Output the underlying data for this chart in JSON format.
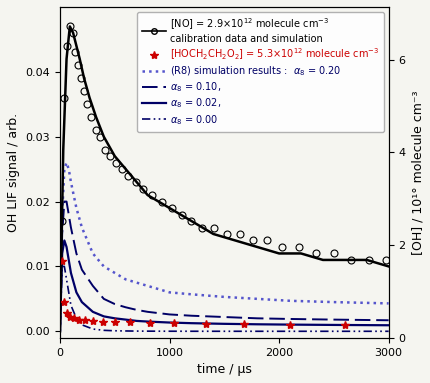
{
  "xlabel": "time / μs",
  "ylabel_left": "OH LIF signal / arb.",
  "ylabel_right": "[OH] / 10¹° molecule cm⁻³",
  "xlim": [
    0,
    3000
  ],
  "ylim_left": [
    -0.001,
    0.05
  ],
  "ylim_right": [
    0,
    7.14
  ],
  "background_color": "#f5f5f0",
  "no_data_x": [
    15,
    40,
    65,
    90,
    115,
    140,
    165,
    190,
    215,
    250,
    285,
    325,
    365,
    410,
    460,
    510,
    565,
    625,
    690,
    760,
    840,
    930,
    1020,
    1110,
    1200,
    1300,
    1410,
    1525,
    1640,
    1760,
    1890,
    2030,
    2180,
    2340,
    2500,
    2660,
    2820,
    2980
  ],
  "no_data_y": [
    0.017,
    0.036,
    0.044,
    0.047,
    0.046,
    0.043,
    0.041,
    0.039,
    0.037,
    0.035,
    0.033,
    0.031,
    0.03,
    0.028,
    0.027,
    0.026,
    0.025,
    0.024,
    0.023,
    0.022,
    0.021,
    0.02,
    0.019,
    0.018,
    0.017,
    0.016,
    0.016,
    0.015,
    0.015,
    0.014,
    0.014,
    0.013,
    0.013,
    0.012,
    0.012,
    0.011,
    0.011,
    0.011
  ],
  "no_sim_x": [
    0,
    30,
    60,
    90,
    120,
    150,
    180,
    220,
    270,
    330,
    400,
    500,
    600,
    700,
    800,
    900,
    1000,
    1100,
    1200,
    1400,
    1600,
    1800,
    2000,
    2200,
    2400,
    2600,
    2800,
    3000
  ],
  "no_sim_y": [
    0.0,
    0.028,
    0.042,
    0.047,
    0.046,
    0.044,
    0.042,
    0.039,
    0.036,
    0.033,
    0.03,
    0.027,
    0.025,
    0.023,
    0.021,
    0.02,
    0.019,
    0.018,
    0.017,
    0.015,
    0.014,
    0.013,
    0.012,
    0.012,
    0.011,
    0.011,
    0.011,
    0.01
  ],
  "hoch_data_x": [
    15,
    40,
    65,
    95,
    130,
    175,
    230,
    300,
    390,
    500,
    640,
    820,
    1040,
    1330,
    1680,
    2100,
    2600
  ],
  "hoch_data_y": [
    0.0108,
    0.0045,
    0.0028,
    0.0022,
    0.002,
    0.0018,
    0.0017,
    0.0016,
    0.0015,
    0.0015,
    0.0014,
    0.0013,
    0.0013,
    0.0012,
    0.0011,
    0.001,
    0.0009
  ],
  "alpha020_x": [
    0,
    20,
    40,
    60,
    80,
    100,
    150,
    200,
    300,
    400,
    500,
    600,
    700,
    800,
    1000,
    1200,
    1500,
    1800,
    2100,
    2500,
    3000
  ],
  "alpha020_y": [
    0.0,
    0.018,
    0.025,
    0.026,
    0.025,
    0.023,
    0.019,
    0.016,
    0.012,
    0.01,
    0.009,
    0.008,
    0.0075,
    0.007,
    0.006,
    0.0057,
    0.0053,
    0.005,
    0.0047,
    0.0045,
    0.0043
  ],
  "alpha010_x": [
    0,
    20,
    40,
    60,
    80,
    100,
    150,
    200,
    300,
    400,
    500,
    600,
    700,
    800,
    1000,
    1200,
    1500,
    1800,
    2100,
    2500,
    3000
  ],
  "alpha010_y": [
    0.0,
    0.015,
    0.02,
    0.02,
    0.018,
    0.016,
    0.012,
    0.0095,
    0.007,
    0.005,
    0.0042,
    0.0037,
    0.0033,
    0.003,
    0.0026,
    0.0024,
    0.0022,
    0.002,
    0.0019,
    0.0018,
    0.0017
  ],
  "alpha002_x": [
    0,
    20,
    40,
    60,
    80,
    100,
    150,
    200,
    300,
    400,
    500,
    600,
    700,
    800,
    1000,
    1200,
    1500,
    1800,
    2100,
    2500,
    3000
  ],
  "alpha002_y": [
    0.0,
    0.012,
    0.014,
    0.013,
    0.011,
    0.009,
    0.006,
    0.0045,
    0.003,
    0.0023,
    0.002,
    0.0018,
    0.0016,
    0.0015,
    0.00135,
    0.00125,
    0.00115,
    0.00108,
    0.00103,
    0.00098,
    0.00093
  ],
  "alpha000_x": [
    0,
    20,
    40,
    60,
    80,
    100,
    150,
    200,
    300,
    400,
    500,
    600,
    700,
    800,
    1000,
    1200,
    1500,
    1800,
    2100,
    2500,
    3000
  ],
  "alpha000_y": [
    0.0,
    0.01,
    0.01,
    0.008,
    0.006,
    0.004,
    0.002,
    0.001,
    0.00035,
    0.00015,
    8e-05,
    5e-05,
    3e-05,
    2e-05,
    1e-05,
    5e-06,
    2e-06,
    8e-07,
    3e-07,
    1e-07,
    3e-08
  ],
  "color_no": "#000000",
  "color_hoch": "#cc0000",
  "color_alpha020": "#5555cc",
  "color_alpha_dark": "#000066",
  "legend_fontsize": 7.0,
  "tick_fontsize": 8,
  "label_fontsize": 9
}
